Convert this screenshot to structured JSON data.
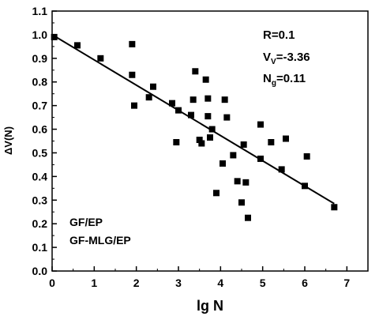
{
  "chart_data": {
    "type": "scatter",
    "xlabel": "lg N",
    "ylabel": "ΔV(N)",
    "xlim": [
      0,
      7.5
    ],
    "ylim": [
      0,
      1.1
    ],
    "x_ticks": [
      0,
      1,
      2,
      3,
      4,
      5,
      6,
      7
    ],
    "y_ticks": [
      0.0,
      0.1,
      0.2,
      0.3,
      0.4,
      0.5,
      0.6,
      0.7,
      0.8,
      0.9,
      1.0,
      1.1
    ],
    "grid": false,
    "points": [
      {
        "x": 0.05,
        "y": 0.99
      },
      {
        "x": 0.6,
        "y": 0.955
      },
      {
        "x": 1.15,
        "y": 0.9
      },
      {
        "x": 1.9,
        "y": 0.96
      },
      {
        "x": 1.9,
        "y": 0.83
      },
      {
        "x": 1.95,
        "y": 0.7
      },
      {
        "x": 2.3,
        "y": 0.735
      },
      {
        "x": 2.4,
        "y": 0.78
      },
      {
        "x": 2.85,
        "y": 0.71
      },
      {
        "x": 2.95,
        "y": 0.545
      },
      {
        "x": 3.0,
        "y": 0.68
      },
      {
        "x": 3.3,
        "y": 0.66
      },
      {
        "x": 3.35,
        "y": 0.725
      },
      {
        "x": 3.4,
        "y": 0.845
      },
      {
        "x": 3.5,
        "y": 0.555
      },
      {
        "x": 3.55,
        "y": 0.54
      },
      {
        "x": 3.65,
        "y": 0.81
      },
      {
        "x": 3.7,
        "y": 0.73
      },
      {
        "x": 3.7,
        "y": 0.655
      },
      {
        "x": 3.75,
        "y": 0.565
      },
      {
        "x": 3.8,
        "y": 0.6
      },
      {
        "x": 3.9,
        "y": 0.33
      },
      {
        "x": 4.05,
        "y": 0.455
      },
      {
        "x": 4.1,
        "y": 0.725
      },
      {
        "x": 4.15,
        "y": 0.65
      },
      {
        "x": 4.3,
        "y": 0.49
      },
      {
        "x": 4.4,
        "y": 0.38
      },
      {
        "x": 4.5,
        "y": 0.29
      },
      {
        "x": 4.55,
        "y": 0.535
      },
      {
        "x": 4.6,
        "y": 0.375
      },
      {
        "x": 4.65,
        "y": 0.225
      },
      {
        "x": 4.95,
        "y": 0.62
      },
      {
        "x": 4.95,
        "y": 0.475
      },
      {
        "x": 5.2,
        "y": 0.545
      },
      {
        "x": 5.45,
        "y": 0.43
      },
      {
        "x": 5.55,
        "y": 0.56
      },
      {
        "x": 6.0,
        "y": 0.36
      },
      {
        "x": 6.05,
        "y": 0.485
      },
      {
        "x": 6.7,
        "y": 0.27
      }
    ],
    "fit_line": {
      "x": [
        0.0,
        6.7
      ],
      "y": [
        1.0,
        0.285
      ]
    },
    "annotations": {
      "r": "R=0.1",
      "v_main": "V",
      "v_sub": "V",
      "v_rest": "=-3.36",
      "n_main": "N",
      "n_sub": "g",
      "n_rest": "=0.11"
    },
    "legend_texts": [
      "GF/EP",
      "GF-MLG/EP"
    ]
  }
}
